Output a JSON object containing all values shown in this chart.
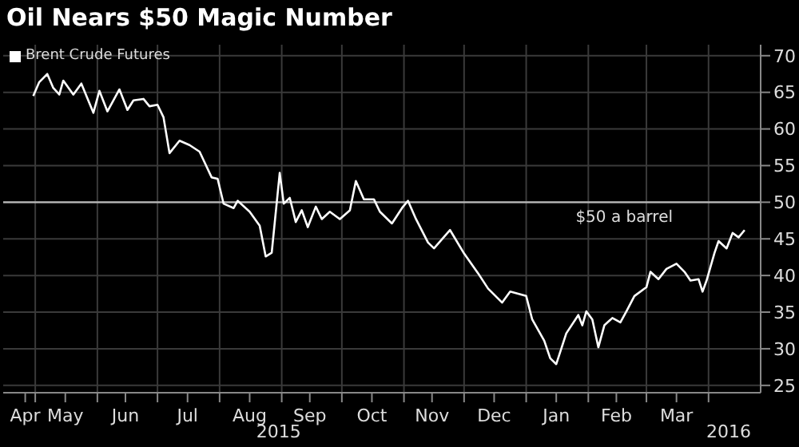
{
  "chart_data": {
    "type": "line",
    "title": "Oil Nears $50 Magic Number",
    "x": [
      "2015-04-30",
      "2015-05-03",
      "2015-05-07",
      "2015-05-10",
      "2015-05-13",
      "2015-05-15",
      "2015-05-20",
      "2015-05-24",
      "2015-05-30",
      "2015-06-02",
      "2015-06-06",
      "2015-06-12",
      "2015-06-16",
      "2015-06-19",
      "2015-06-24",
      "2015-06-27",
      "2015-07-01",
      "2015-07-04",
      "2015-07-07",
      "2015-07-12",
      "2015-07-17",
      "2015-07-22",
      "2015-07-28",
      "2015-07-31",
      "2015-08-03",
      "2015-08-08",
      "2015-08-10",
      "2015-08-16",
      "2015-08-21",
      "2015-08-24",
      "2015-08-27",
      "2015-08-31",
      "2015-09-02",
      "2015-09-05",
      "2015-09-08",
      "2015-09-11",
      "2015-09-14",
      "2015-09-18",
      "2015-09-21",
      "2015-09-25",
      "2015-09-30",
      "2015-10-05",
      "2015-10-08",
      "2015-10-12",
      "2015-10-17",
      "2015-10-20",
      "2015-10-26",
      "2015-10-31",
      "2015-11-03",
      "2015-11-07",
      "2015-11-13",
      "2015-11-16",
      "2015-11-24",
      "2015-12-01",
      "2015-12-08",
      "2015-12-13",
      "2015-12-20",
      "2015-12-24",
      "2016-01-01",
      "2016-01-04",
      "2016-01-10",
      "2016-01-13",
      "2016-01-16",
      "2016-01-21",
      "2016-01-27",
      "2016-01-29",
      "2016-01-31",
      "2016-02-03",
      "2016-02-06",
      "2016-02-09",
      "2016-02-13",
      "2016-02-17",
      "2016-02-20",
      "2016-02-24",
      "2016-03-01",
      "2016-03-03",
      "2016-03-07",
      "2016-03-11",
      "2016-03-16",
      "2016-03-20",
      "2016-03-23",
      "2016-03-27",
      "2016-03-29",
      "2016-03-31",
      "2016-04-04",
      "2016-04-06",
      "2016-04-10",
      "2016-04-13",
      "2016-04-16",
      "2016-04-19"
    ],
    "series": [
      {
        "name": "Brent Crude Futures",
        "color": "#ffffff",
        "values": [
          64.5,
          66.4,
          67.5,
          65.6,
          64.7,
          66.6,
          64.7,
          66.2,
          62.2,
          65.2,
          62.4,
          65.4,
          62.6,
          63.9,
          64.1,
          63.1,
          63.3,
          61.6,
          56.7,
          58.4,
          57.8,
          56.9,
          53.4,
          53.2,
          49.8,
          49.2,
          50.2,
          48.7,
          46.8,
          42.6,
          43.1,
          54.0,
          49.8,
          50.6,
          47.3,
          48.9,
          46.6,
          49.4,
          47.7,
          48.7,
          47.7,
          48.9,
          52.9,
          50.4,
          50.4,
          48.7,
          47.1,
          49.2,
          50.2,
          47.7,
          44.5,
          43.7,
          46.2,
          43.0,
          40.3,
          38.2,
          36.3,
          37.8,
          37.2,
          34.0,
          31.1,
          28.7,
          27.9,
          32.1,
          34.6,
          33.2,
          35.1,
          34.0,
          30.2,
          33.2,
          34.2,
          33.6,
          35.1,
          37.2,
          38.4,
          40.5,
          39.5,
          40.9,
          41.6,
          40.5,
          39.3,
          39.5,
          37.8,
          39.3,
          43.1,
          44.7,
          43.7,
          45.8,
          45.2,
          46.2
        ]
      }
    ],
    "xlim": [
      "2015-04-15",
      "2016-04-27"
    ],
    "xticks": [
      {
        "value": "2015-04-26",
        "label": "Apr"
      },
      {
        "value": "2015-05-16",
        "label": "May"
      },
      {
        "value": "2015-06-15",
        "label": "Jun"
      },
      {
        "value": "2015-07-16",
        "label": "Jul"
      },
      {
        "value": "2015-08-16",
        "label": "Aug"
      },
      {
        "value": "2015-09-15",
        "label": "Sep"
      },
      {
        "value": "2015-10-16",
        "label": "Oct"
      },
      {
        "value": "2015-11-15",
        "label": "Nov"
      },
      {
        "value": "2015-12-16",
        "label": "Dec"
      },
      {
        "value": "2016-01-16",
        "label": "Jan"
      },
      {
        "value": "2016-02-15",
        "label": "Feb"
      },
      {
        "value": "2016-03-16",
        "label": "Mar"
      },
      {
        "value": "2015-05-01",
        "label": null
      },
      {
        "value": "2015-06-01",
        "label": null
      },
      {
        "value": "2015-07-01",
        "label": null
      },
      {
        "value": "2015-08-01",
        "label": null
      },
      {
        "value": "2015-09-01",
        "label": null
      },
      {
        "value": "2015-10-01",
        "label": null
      },
      {
        "value": "2015-11-01",
        "label": null
      },
      {
        "value": "2015-12-01",
        "label": null
      },
      {
        "value": "2016-01-01",
        "label": null
      },
      {
        "value": "2016-02-01",
        "label": null
      },
      {
        "value": "2016-03-01",
        "label": null
      },
      {
        "value": "2016-04-01",
        "label": null
      }
    ],
    "ylim": [
      24,
      71.5
    ],
    "yticks": [
      25,
      30,
      35,
      40,
      45,
      50,
      55,
      60,
      65,
      70
    ],
    "ref_lines": [
      {
        "axis": "y",
        "value": 50,
        "label": "$50 a barrel",
        "color": "#bbbbbb"
      }
    ],
    "annotations": [
      "2015",
      "2016"
    ],
    "grid": true,
    "legend": "top left",
    "marker": "none",
    "line_style": "solid"
  }
}
